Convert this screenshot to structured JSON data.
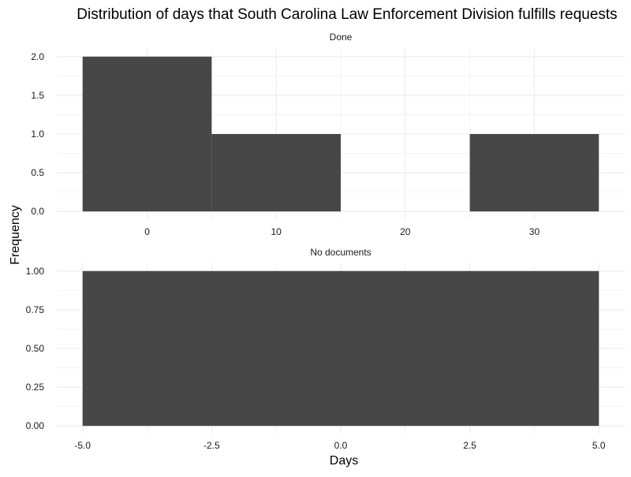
{
  "chart_data": {
    "type": "bar",
    "title": "Distribution of days that South Carolina Law Enforcement Division fulfills requests",
    "xlabel": "Days",
    "ylabel": "Frequency",
    "grid": true,
    "bar_color": "#474747",
    "grid_color": "#ebebeb",
    "panels": [
      {
        "facet_label": "Done",
        "bins": [
          {
            "x0": -5,
            "x1": 5,
            "count": 2
          },
          {
            "x0": 5,
            "x1": 15,
            "count": 1
          },
          {
            "x0": 15,
            "x1": 25,
            "count": 0
          },
          {
            "x0": 25,
            "x1": 35,
            "count": 1
          }
        ],
        "xlim": [
          -5,
          35
        ],
        "ylim": [
          0,
          2
        ],
        "xticks": [
          0,
          10,
          20,
          30
        ],
        "xtick_labels": [
          "0",
          "10",
          "20",
          "30"
        ],
        "yticks": [
          0,
          0.5,
          1,
          1.5,
          2
        ],
        "ytick_labels": [
          "0.0",
          "0.5",
          "1.0",
          "1.5",
          "2.0"
        ]
      },
      {
        "facet_label": "No documents",
        "bins": [
          {
            "x0": -5,
            "x1": 5,
            "count": 1
          }
        ],
        "xlim": [
          -5,
          5
        ],
        "ylim": [
          0,
          1
        ],
        "xticks": [
          -5,
          -2.5,
          0,
          2.5,
          5
        ],
        "xtick_labels": [
          "-5.0",
          "-2.5",
          "0.0",
          "2.5",
          "5.0"
        ],
        "yticks": [
          0,
          0.25,
          0.5,
          0.75,
          1
        ],
        "ytick_labels": [
          "0.00",
          "0.25",
          "0.50",
          "0.75",
          "1.00"
        ]
      }
    ]
  }
}
